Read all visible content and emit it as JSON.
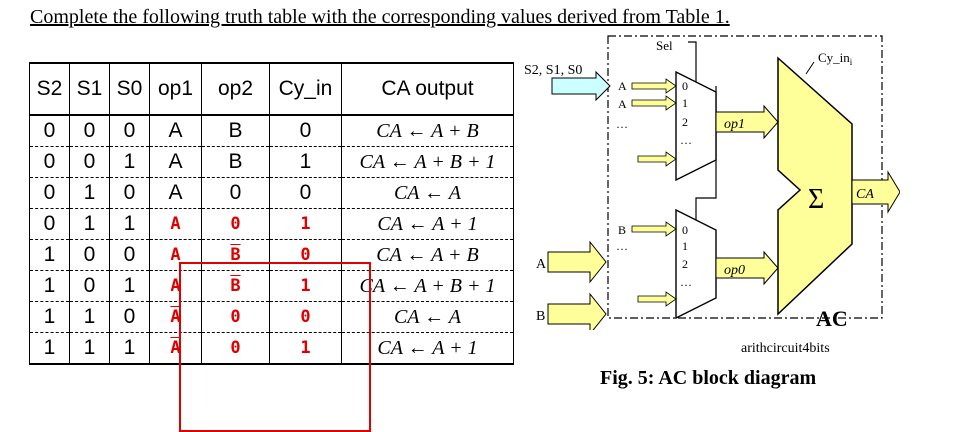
{
  "instruction": "Complete the following truth table with the corresponding values derived from Table 1.",
  "table": {
    "headers": [
      "S2",
      "S1",
      "S0",
      "op1",
      "op2",
      "Cy_in",
      "CA output"
    ],
    "rows": [
      {
        "s2": "0",
        "s1": "0",
        "s0": "0",
        "op1": "A",
        "op2": "B",
        "cy": "0",
        "ca": "CA ← A + B",
        "red": false
      },
      {
        "s2": "0",
        "s1": "0",
        "s0": "1",
        "op1": "A",
        "op2": "B",
        "cy": "1",
        "ca": "CA ← A + B + 1",
        "red": false
      },
      {
        "s2": "0",
        "s1": "1",
        "s0": "0",
        "op1": "A",
        "op2": "0",
        "cy": "0",
        "ca": "CA ← A",
        "red": false
      },
      {
        "s2": "0",
        "s1": "1",
        "s0": "1",
        "op1": "A",
        "op2": "0",
        "cy": "1",
        "ca": "CA ← A + 1",
        "red": true
      },
      {
        "s2": "1",
        "s1": "0",
        "s0": "0",
        "op1": "A",
        "op2": "B",
        "cy": "0",
        "ca": "CA ← A + B",
        "red": true
      },
      {
        "s2": "1",
        "s1": "0",
        "s0": "1",
        "op1": "A",
        "op2": "B",
        "cy": "1",
        "ca": "CA ← A + B + 1",
        "red": true
      },
      {
        "s2": "1",
        "s1": "1",
        "s0": "0",
        "op1": "A",
        "op2": "0",
        "cy": "0",
        "ca": "CA ← A",
        "red": true
      },
      {
        "s2": "1",
        "s1": "1",
        "s0": "1",
        "op1": "A",
        "op2": "0",
        "cy": "1",
        "ca": "CA ← A + 1",
        "red": true
      }
    ]
  },
  "diagram": {
    "sel_label": "Sel",
    "s_input_label": "S2, S1, S0",
    "cy_label": "Cy_in",
    "cy_sub": "i",
    "mux1_inputs": [
      "A",
      "A",
      "…"
    ],
    "mux1_ports": [
      "0",
      "1",
      "2",
      "…"
    ],
    "mux1_output": "op1",
    "mux2_inputs": [
      "B",
      "…"
    ],
    "mux2_ports": [
      "0",
      "1",
      "2",
      "…"
    ],
    "mux2_output": "op0",
    "ext_a": "A",
    "ext_b": "B",
    "sigma": "Σ",
    "output": "CA",
    "block_label": "AC",
    "module_name": "arithcircuit4bits"
  },
  "caption": "Fig. 5: AC block diagram",
  "colors": {
    "red": "#e00000",
    "adder": "#ffff99",
    "arrow": "#ffff99",
    "s_arrow": "#ccffff"
  }
}
